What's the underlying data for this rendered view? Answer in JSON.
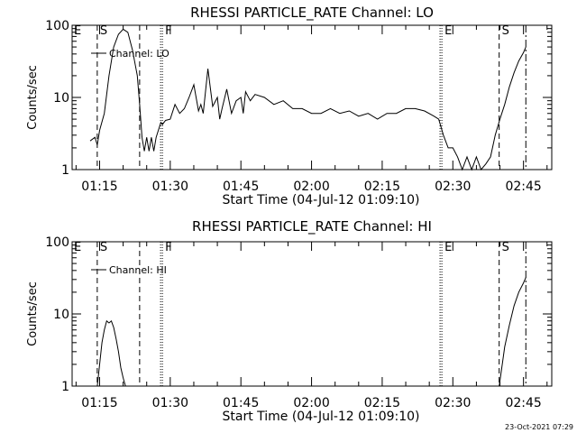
{
  "chart_data": [
    {
      "type": "line",
      "title": "RHESSI PARTICLE_RATE Channel: LO",
      "xlabel": "Start Time (04-Jul-12 01:09:10)",
      "ylabel": "Counts/sec",
      "yscale": "log",
      "ylim": [
        1,
        100
      ],
      "y_ticks": [
        "1",
        "10",
        "100"
      ],
      "x_ticks": [
        "01:15",
        "01:30",
        "01:45",
        "02:00",
        "02:15",
        "02:30",
        "02:45"
      ],
      "xlim": [
        "01:09:10",
        "02:51:00"
      ],
      "legend": "Channel: LO",
      "event_markers": [
        {
          "label": "E",
          "time": "01:09:10",
          "style": "none"
        },
        {
          "label": "S",
          "time": "01:14:30",
          "style": "dashed"
        },
        {
          "label": "",
          "time": "01:23:30",
          "style": "dashed"
        },
        {
          "label": "F",
          "time": "01:28:20",
          "style": "dotted"
        },
        {
          "label": "E",
          "time": "02:27:40",
          "style": "dotted"
        },
        {
          "label": "S",
          "time": "02:39:50",
          "style": "dashed"
        },
        {
          "label": "",
          "time": "02:45:30",
          "style": "dashdot"
        }
      ],
      "series": [
        {
          "name": "Channel: LO",
          "x": [
            "01:13:00",
            "01:14:00",
            "01:14:30",
            "01:15:00",
            "01:16:00",
            "01:17:00",
            "01:18:00",
            "01:19:00",
            "01:20:00",
            "01:21:00",
            "01:22:00",
            "01:23:00",
            "01:23:30",
            "01:24:00",
            "01:24:30",
            "01:25:00",
            "01:25:30",
            "01:26:00",
            "01:26:30",
            "01:27:00",
            "01:28:00",
            "01:28:20",
            "01:29:00",
            "01:30:00",
            "01:31:00",
            "01:32:00",
            "01:33:00",
            "01:34:00",
            "01:35:00",
            "01:36:00",
            "01:36:30",
            "01:37:00",
            "01:38:00",
            "01:39:00",
            "01:40:00",
            "01:40:30",
            "01:41:00",
            "01:42:00",
            "01:43:00",
            "01:44:00",
            "01:45:00",
            "01:45:30",
            "01:46:00",
            "01:47:00",
            "01:48:00",
            "01:50:00",
            "01:52:00",
            "01:54:00",
            "01:56:00",
            "01:58:00",
            "02:00:00",
            "02:02:00",
            "02:04:00",
            "02:06:00",
            "02:08:00",
            "02:10:00",
            "02:12:00",
            "02:14:00",
            "02:16:00",
            "02:18:00",
            "02:20:00",
            "02:22:00",
            "02:24:00",
            "02:26:00",
            "02:27:00",
            "02:28:00",
            "02:29:00",
            "02:30:00",
            "02:31:00",
            "02:32:00",
            "02:33:00",
            "02:34:00",
            "02:35:00",
            "02:36:00",
            "02:37:00",
            "02:38:00",
            "02:39:00",
            "02:40:00",
            "02:41:00",
            "02:42:00",
            "02:43:00",
            "02:44:00",
            "02:45:00",
            "02:45:30"
          ],
          "y": [
            2.5,
            2.8,
            2.2,
            3.5,
            6,
            20,
            50,
            75,
            88,
            80,
            45,
            20,
            8,
            2.8,
            1.8,
            2.8,
            1.8,
            2.8,
            1.8,
            2.8,
            4.5,
            4.2,
            4.8,
            5,
            8,
            6,
            7,
            10,
            15,
            6.5,
            8,
            6,
            25,
            7.5,
            10,
            5,
            7,
            13,
            6,
            9,
            10,
            6,
            12,
            9,
            11,
            10,
            8,
            9,
            7,
            7,
            6,
            6,
            7,
            6,
            6.5,
            5.5,
            6,
            5,
            6,
            6,
            7,
            7,
            6.5,
            5.5,
            5,
            3,
            2,
            2,
            1.5,
            1,
            1.5,
            1,
            1.5,
            1,
            1.2,
            1.5,
            3,
            5,
            8,
            14,
            22,
            32,
            42,
            50
          ]
        }
      ]
    },
    {
      "type": "line",
      "title": "RHESSI PARTICLE_RATE Channel: HI",
      "xlabel": "Start Time (04-Jul-12 01:09:10)",
      "ylabel": "Counts/sec",
      "yscale": "log",
      "ylim": [
        1,
        100
      ],
      "y_ticks": [
        "1",
        "10",
        "100"
      ],
      "x_ticks": [
        "01:15",
        "01:30",
        "01:45",
        "02:00",
        "02:15",
        "02:30",
        "02:45"
      ],
      "xlim": [
        "01:09:10",
        "02:51:00"
      ],
      "legend": "Channel: HI",
      "event_markers": [
        {
          "label": "E",
          "time": "01:09:10",
          "style": "none"
        },
        {
          "label": "S",
          "time": "01:14:30",
          "style": "dashed"
        },
        {
          "label": "",
          "time": "01:23:30",
          "style": "dashed"
        },
        {
          "label": "F",
          "time": "01:28:20",
          "style": "dotted"
        },
        {
          "label": "E",
          "time": "02:27:40",
          "style": "dotted"
        },
        {
          "label": "S",
          "time": "02:39:50",
          "style": "dashed"
        },
        {
          "label": "",
          "time": "02:45:30",
          "style": "dashdot"
        }
      ],
      "series": [
        {
          "name": "Channel: HI",
          "x": [
            "01:14:30",
            "01:15:00",
            "01:15:30",
            "01:16:00",
            "01:16:30",
            "01:17:00",
            "01:17:30",
            "01:18:00",
            "01:18:30",
            "01:19:00",
            "01:19:30",
            "01:20:00",
            "01:20:30",
            "02:39:50",
            "02:40:30",
            "02:41:00",
            "02:42:00",
            "02:43:00",
            "02:44:00",
            "02:45:00",
            "02:45:30"
          ],
          "y": [
            1,
            2,
            4,
            6,
            8,
            7.5,
            8,
            6.5,
            4.5,
            3,
            1.8,
            1.3,
            1,
            1,
            2,
            3.5,
            7,
            13,
            20,
            27,
            32
          ]
        }
      ]
    }
  ],
  "footer": {
    "date": "23-Oct-2021 07:29"
  }
}
